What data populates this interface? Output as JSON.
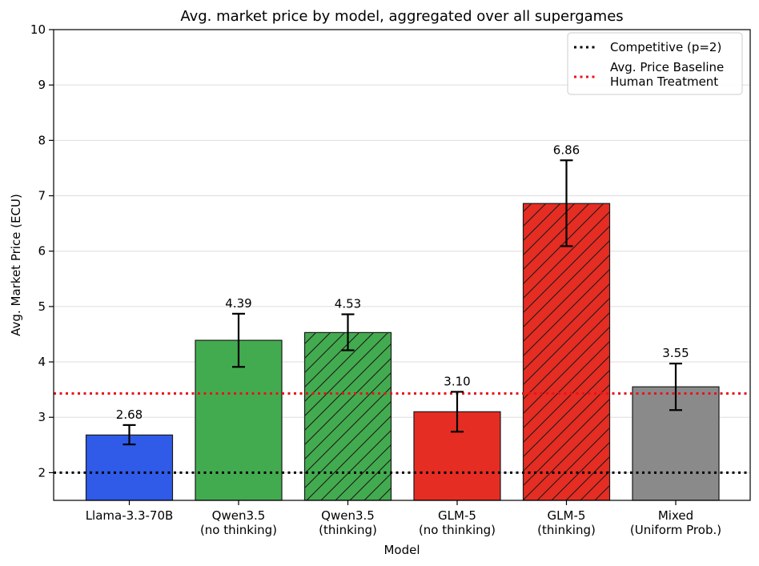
{
  "chart_data": {
    "type": "bar",
    "title": "Avg. market price by model, aggregated over all supergames",
    "xlabel": "Model",
    "ylabel": "Avg. Market Price (ECU)",
    "ylim": [
      1.5,
      10
    ],
    "yticks": [
      "2",
      "3",
      "4",
      "5",
      "6",
      "7",
      "8",
      "9",
      "10"
    ],
    "grid": "y",
    "legend_position": "top-right",
    "categories": [
      [
        "Llama-3.3-70B"
      ],
      [
        "Qwen3.5",
        "(no thinking)"
      ],
      [
        "Qwen3.5",
        "(thinking)"
      ],
      [
        "GLM-5",
        "(no thinking)"
      ],
      [
        "GLM-5",
        "(thinking)"
      ],
      [
        "Mixed",
        "(Uniform Prob.)"
      ]
    ],
    "values": [
      2.68,
      4.39,
      4.53,
      3.1,
      6.86,
      3.55
    ],
    "value_labels": [
      "2.68",
      "4.39",
      "4.53",
      "3.10",
      "6.86",
      "3.55"
    ],
    "error_low": [
      2.51,
      3.91,
      4.21,
      2.74,
      6.09,
      3.13
    ],
    "error_high": [
      2.86,
      4.87,
      4.86,
      3.46,
      7.64,
      3.97
    ],
    "bar_colors": [
      "#2f5be8",
      "#43ab4f",
      "#43ab4f",
      "#e52d23",
      "#e52d23",
      "#8a8a8a"
    ],
    "hatched": [
      false,
      false,
      true,
      false,
      true,
      false
    ],
    "reference_lines": [
      {
        "label": [
          "Competitive (p=2)"
        ],
        "value": 2,
        "color": "#000000"
      },
      {
        "label": [
          "Avg. Price Baseline",
          "Human Treatment"
        ],
        "value": 3.43,
        "color": "#e8141b"
      }
    ]
  }
}
